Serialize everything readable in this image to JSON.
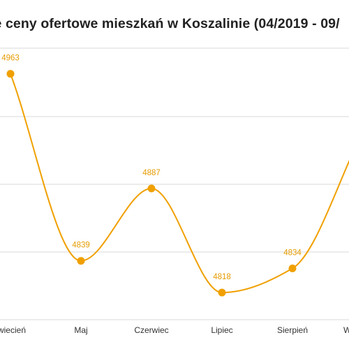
{
  "chart_title": "ie ceny ofertowe mieszkań w Koszalinie (04/2019 - 09/",
  "colors": {
    "series": "#f0a000",
    "label": "#e69b00",
    "grid": "#d9d9d9",
    "text": "#333333"
  },
  "chart_data": {
    "type": "line",
    "title": "ie ceny ofertowe mieszkań w Koszalinie (04/2019 - 09/",
    "categories": [
      "wiecień",
      "Maj",
      "Czerwiec",
      "Lipiec",
      "Sierpień",
      "W"
    ],
    "series": [
      {
        "values": [
          4963,
          4839,
          4887,
          4818,
          4834,
          4925
        ]
      }
    ],
    "data_labels": [
      "4963",
      "4839",
      "4887",
      "4818",
      "4834",
      ""
    ],
    "ylim": [
      4800,
      4980
    ],
    "grid": true,
    "smooth": true
  }
}
